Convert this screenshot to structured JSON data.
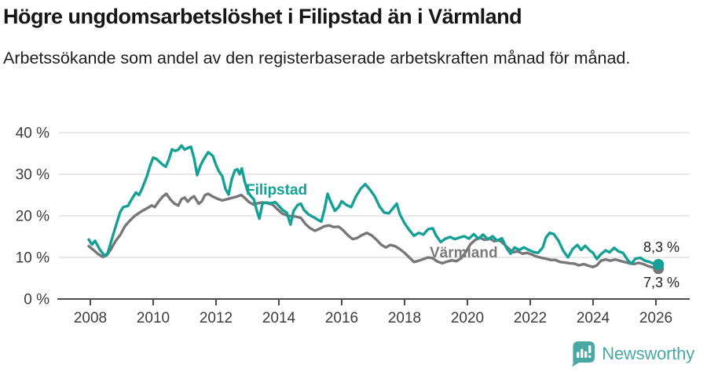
{
  "header": {
    "title": "Högre ungdomsarbetslöshet i Filipstad än i Värmland",
    "subtitle": "Arbetssökande som andel av den registerbaserade arbetskraften månad för månad."
  },
  "colors": {
    "filipstad": "#14a094",
    "varmland": "#77777a",
    "logo_teal": "#49a8a1",
    "grid": "#d9d9d9",
    "axis": "#4d4d4d",
    "axis_text": "#3c3c3c",
    "value_label": "#232323"
  },
  "footer": {
    "brand": "Newsworthy",
    "logo_icon": "speech-bubble-bar-chart-icon"
  },
  "chart_data": {
    "type": "line",
    "unit": "%",
    "grid": true,
    "legend": "inline-labels",
    "x_axis": {
      "ticks": [
        2008,
        2010,
        2012,
        2014,
        2016,
        2018,
        2020,
        2022,
        2024,
        2026
      ],
      "range": [
        2007.8,
        2026.6
      ]
    },
    "y_axis": {
      "ticks": [
        0,
        10,
        20,
        30,
        40
      ],
      "tick_suffix": " %",
      "range": [
        0,
        42
      ]
    },
    "series": [
      {
        "name": "Filipstad",
        "label": "Filipstad",
        "end_label": "8,3 %",
        "end_value": 8.3,
        "color": "#14a094",
        "points": [
          [
            2007.95,
            14.3
          ],
          [
            2008.05,
            13.1
          ],
          [
            2008.15,
            14.0
          ],
          [
            2008.3,
            11.9
          ],
          [
            2008.45,
            10.4
          ],
          [
            2008.55,
            11.0
          ],
          [
            2008.65,
            13.5
          ],
          [
            2008.8,
            17.3
          ],
          [
            2008.95,
            20.9
          ],
          [
            2009.05,
            22.1
          ],
          [
            2009.2,
            22.4
          ],
          [
            2009.3,
            23.8
          ],
          [
            2009.45,
            25.6
          ],
          [
            2009.55,
            25.0
          ],
          [
            2009.65,
            26.6
          ],
          [
            2009.8,
            29.5
          ],
          [
            2009.9,
            32.0
          ],
          [
            2010.0,
            34.0
          ],
          [
            2010.1,
            33.7
          ],
          [
            2010.2,
            33.0
          ],
          [
            2010.3,
            32.3
          ],
          [
            2010.4,
            31.8
          ],
          [
            2010.5,
            33.6
          ],
          [
            2010.6,
            36.0
          ],
          [
            2010.7,
            35.6
          ],
          [
            2010.8,
            35.9
          ],
          [
            2010.9,
            36.9
          ],
          [
            2011.0,
            35.9
          ],
          [
            2011.1,
            36.3
          ],
          [
            2011.2,
            36.6
          ],
          [
            2011.3,
            33.9
          ],
          [
            2011.4,
            29.8
          ],
          [
            2011.5,
            32.0
          ],
          [
            2011.6,
            33.5
          ],
          [
            2011.75,
            35.3
          ],
          [
            2011.9,
            34.4
          ],
          [
            2012.0,
            32.2
          ],
          [
            2012.1,
            30.6
          ],
          [
            2012.2,
            29.5
          ],
          [
            2012.3,
            26.5
          ],
          [
            2012.4,
            25.1
          ],
          [
            2012.5,
            28.8
          ],
          [
            2012.6,
            30.9
          ],
          [
            2012.68,
            31.2
          ],
          [
            2012.75,
            30.0
          ],
          [
            2012.82,
            31.4
          ],
          [
            2012.9,
            28.6
          ],
          [
            2013.0,
            26.0
          ],
          [
            2013.1,
            24.8
          ],
          [
            2013.2,
            24.0
          ],
          [
            2013.3,
            21.2
          ],
          [
            2013.38,
            19.3
          ],
          [
            2013.48,
            23.0
          ],
          [
            2013.6,
            23.2
          ],
          [
            2013.75,
            23.0
          ],
          [
            2013.88,
            23.3
          ],
          [
            2014.0,
            22.4
          ],
          [
            2014.12,
            21.4
          ],
          [
            2014.25,
            20.8
          ],
          [
            2014.37,
            17.9
          ],
          [
            2014.47,
            21.2
          ],
          [
            2014.6,
            22.6
          ],
          [
            2014.7,
            22.9
          ],
          [
            2014.8,
            21.4
          ],
          [
            2014.95,
            20.3
          ],
          [
            2015.1,
            19.7
          ],
          [
            2015.25,
            19.0
          ],
          [
            2015.35,
            18.6
          ],
          [
            2015.45,
            21.5
          ],
          [
            2015.55,
            25.3
          ],
          [
            2015.65,
            23.4
          ],
          [
            2015.78,
            21.2
          ],
          [
            2015.9,
            22.1
          ],
          [
            2016.0,
            23.5
          ],
          [
            2016.15,
            22.6
          ],
          [
            2016.3,
            22.1
          ],
          [
            2016.45,
            24.6
          ],
          [
            2016.6,
            26.5
          ],
          [
            2016.75,
            27.6
          ],
          [
            2016.9,
            26.3
          ],
          [
            2017.05,
            24.7
          ],
          [
            2017.2,
            22.3
          ],
          [
            2017.35,
            20.8
          ],
          [
            2017.5,
            20.6
          ],
          [
            2017.65,
            22.0
          ],
          [
            2017.75,
            22.9
          ],
          [
            2017.85,
            20.4
          ],
          [
            2018.0,
            18.2
          ],
          [
            2018.15,
            16.6
          ],
          [
            2018.3,
            15.2
          ],
          [
            2018.45,
            15.9
          ],
          [
            2018.6,
            15.5
          ],
          [
            2018.75,
            16.8
          ],
          [
            2018.9,
            17.0
          ],
          [
            2019.0,
            15.3
          ],
          [
            2019.15,
            13.7
          ],
          [
            2019.3,
            14.5
          ],
          [
            2019.45,
            14.9
          ],
          [
            2019.6,
            14.4
          ],
          [
            2019.75,
            14.8
          ],
          [
            2019.9,
            15.1
          ],
          [
            2020.05,
            14.5
          ],
          [
            2020.2,
            15.6
          ],
          [
            2020.35,
            14.5
          ],
          [
            2020.5,
            15.5
          ],
          [
            2020.65,
            14.3
          ],
          [
            2020.8,
            15.1
          ],
          [
            2020.95,
            14.0
          ],
          [
            2021.1,
            14.6
          ],
          [
            2021.25,
            12.2
          ],
          [
            2021.37,
            10.9
          ],
          [
            2021.5,
            12.4
          ],
          [
            2021.65,
            11.8
          ],
          [
            2021.8,
            12.4
          ],
          [
            2021.95,
            11.8
          ],
          [
            2022.1,
            11.3
          ],
          [
            2022.25,
            11.1
          ],
          [
            2022.4,
            12.4
          ],
          [
            2022.5,
            14.8
          ],
          [
            2022.62,
            15.9
          ],
          [
            2022.75,
            15.6
          ],
          [
            2022.9,
            14.0
          ],
          [
            2023.05,
            11.6
          ],
          [
            2023.2,
            10.0
          ],
          [
            2023.35,
            12.0
          ],
          [
            2023.5,
            13.0
          ],
          [
            2023.62,
            11.8
          ],
          [
            2023.75,
            12.8
          ],
          [
            2023.9,
            11.6
          ],
          [
            2024.0,
            11.1
          ],
          [
            2024.12,
            9.6
          ],
          [
            2024.25,
            10.8
          ],
          [
            2024.4,
            11.7
          ],
          [
            2024.52,
            11.2
          ],
          [
            2024.67,
            12.3
          ],
          [
            2024.8,
            11.5
          ],
          [
            2024.95,
            11.1
          ],
          [
            2025.1,
            9.4
          ],
          [
            2025.22,
            8.5
          ],
          [
            2025.35,
            9.7
          ],
          [
            2025.5,
            9.9
          ],
          [
            2025.65,
            9.2
          ],
          [
            2025.8,
            8.9
          ],
          [
            2025.95,
            8.4
          ],
          [
            2026.08,
            8.3
          ]
        ]
      },
      {
        "name": "Värmland",
        "label": "Värmland",
        "end_label": "7,3 %",
        "end_value": 7.3,
        "color": "#77777a",
        "points": [
          [
            2007.95,
            12.7
          ],
          [
            2008.1,
            11.8
          ],
          [
            2008.25,
            10.8
          ],
          [
            2008.4,
            10.1
          ],
          [
            2008.52,
            10.5
          ],
          [
            2008.65,
            11.9
          ],
          [
            2008.8,
            13.9
          ],
          [
            2008.95,
            15.4
          ],
          [
            2009.1,
            17.5
          ],
          [
            2009.25,
            18.8
          ],
          [
            2009.4,
            19.9
          ],
          [
            2009.55,
            20.7
          ],
          [
            2009.7,
            21.4
          ],
          [
            2009.85,
            22.0
          ],
          [
            2009.95,
            22.5
          ],
          [
            2010.05,
            22.1
          ],
          [
            2010.18,
            23.5
          ],
          [
            2010.3,
            24.6
          ],
          [
            2010.42,
            25.3
          ],
          [
            2010.55,
            23.9
          ],
          [
            2010.68,
            22.9
          ],
          [
            2010.8,
            22.5
          ],
          [
            2010.9,
            24.0
          ],
          [
            2011.0,
            24.4
          ],
          [
            2011.1,
            23.4
          ],
          [
            2011.2,
            24.2
          ],
          [
            2011.3,
            24.7
          ],
          [
            2011.45,
            22.9
          ],
          [
            2011.55,
            23.5
          ],
          [
            2011.65,
            25.0
          ],
          [
            2011.75,
            25.3
          ],
          [
            2011.9,
            24.6
          ],
          [
            2012.05,
            24.1
          ],
          [
            2012.2,
            23.7
          ],
          [
            2012.35,
            24.0
          ],
          [
            2012.5,
            24.3
          ],
          [
            2012.65,
            24.6
          ],
          [
            2012.8,
            25.0
          ],
          [
            2012.9,
            24.4
          ],
          [
            2013.05,
            23.3
          ],
          [
            2013.2,
            22.7
          ],
          [
            2013.35,
            23.1
          ],
          [
            2013.5,
            23.2
          ],
          [
            2013.65,
            23.0
          ],
          [
            2013.8,
            22.7
          ],
          [
            2013.95,
            21.6
          ],
          [
            2014.1,
            20.6
          ],
          [
            2014.25,
            20.1
          ],
          [
            2014.4,
            19.9
          ],
          [
            2014.55,
            19.8
          ],
          [
            2014.7,
            19.5
          ],
          [
            2014.85,
            18.0
          ],
          [
            2015.0,
            17.0
          ],
          [
            2015.15,
            16.4
          ],
          [
            2015.3,
            16.9
          ],
          [
            2015.45,
            17.5
          ],
          [
            2015.6,
            17.7
          ],
          [
            2015.75,
            17.3
          ],
          [
            2015.9,
            17.4
          ],
          [
            2016.05,
            16.5
          ],
          [
            2016.2,
            15.3
          ],
          [
            2016.35,
            14.4
          ],
          [
            2016.5,
            14.7
          ],
          [
            2016.65,
            15.4
          ],
          [
            2016.8,
            15.9
          ],
          [
            2016.95,
            15.3
          ],
          [
            2017.1,
            14.3
          ],
          [
            2017.25,
            13.1
          ],
          [
            2017.4,
            12.4
          ],
          [
            2017.55,
            13.0
          ],
          [
            2017.7,
            12.7
          ],
          [
            2017.85,
            12.0
          ],
          [
            2018.0,
            11.1
          ],
          [
            2018.15,
            10.0
          ],
          [
            2018.3,
            8.9
          ],
          [
            2018.45,
            9.2
          ],
          [
            2018.6,
            9.6
          ],
          [
            2018.75,
            10.0
          ],
          [
            2018.9,
            9.8
          ],
          [
            2019.05,
            9.0
          ],
          [
            2019.2,
            8.6
          ],
          [
            2019.35,
            9.0
          ],
          [
            2019.5,
            9.3
          ],
          [
            2019.65,
            9.1
          ],
          [
            2019.8,
            9.8
          ],
          [
            2019.95,
            11.3
          ],
          [
            2020.1,
            13.2
          ],
          [
            2020.25,
            14.2
          ],
          [
            2020.4,
            14.7
          ],
          [
            2020.55,
            14.2
          ],
          [
            2020.7,
            14.6
          ],
          [
            2020.85,
            13.9
          ],
          [
            2021.0,
            14.2
          ],
          [
            2021.15,
            13.3
          ],
          [
            2021.3,
            12.2
          ],
          [
            2021.45,
            11.2
          ],
          [
            2021.6,
            11.5
          ],
          [
            2021.75,
            10.9
          ],
          [
            2021.9,
            11.1
          ],
          [
            2022.05,
            10.7
          ],
          [
            2022.2,
            10.2
          ],
          [
            2022.35,
            9.9
          ],
          [
            2022.5,
            9.7
          ],
          [
            2022.65,
            9.4
          ],
          [
            2022.8,
            9.4
          ],
          [
            2022.95,
            8.9
          ],
          [
            2023.1,
            8.8
          ],
          [
            2023.25,
            8.6
          ],
          [
            2023.4,
            8.5
          ],
          [
            2023.55,
            8.1
          ],
          [
            2023.7,
            8.4
          ],
          [
            2023.85,
            8.0
          ],
          [
            2024.0,
            7.7
          ],
          [
            2024.12,
            8.1
          ],
          [
            2024.25,
            9.2
          ],
          [
            2024.4,
            9.5
          ],
          [
            2024.55,
            9.2
          ],
          [
            2024.7,
            9.5
          ],
          [
            2024.85,
            9.2
          ],
          [
            2025.0,
            8.9
          ],
          [
            2025.15,
            8.6
          ],
          [
            2025.3,
            8.4
          ],
          [
            2025.45,
            8.7
          ],
          [
            2025.6,
            8.4
          ],
          [
            2025.75,
            7.9
          ],
          [
            2025.9,
            7.6
          ],
          [
            2026.08,
            7.3
          ]
        ]
      }
    ]
  }
}
